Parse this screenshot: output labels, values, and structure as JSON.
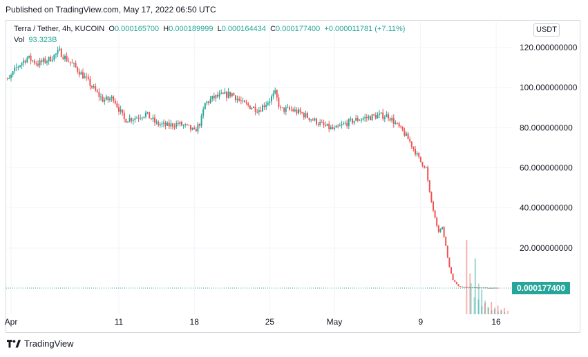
{
  "published": "Published on TradingView.com, May 17, 2022 06:50 UTC",
  "legend": {
    "symbol": "Terra / Tether, 4h, KUCOIN",
    "open_label": "O",
    "open": "0.000165700",
    "high_label": "H",
    "high": "0.000189999",
    "low_label": "L",
    "low": "0.000164434",
    "close_label": "C",
    "close": "0.000177400",
    "change": "+0.000011781 (+7.11%)"
  },
  "volume": {
    "label": "Vol",
    "value": "93.323B"
  },
  "currency_button": "USDT",
  "footer": {
    "brand": "TradingView"
  },
  "colors": {
    "up": "#26a69a",
    "down": "#ef5350",
    "price_tag": "#26a69a",
    "grid": "#f0f3fa"
  },
  "chart_data": {
    "type": "candlestick",
    "interval": "4h",
    "y_axis": {
      "position": "right",
      "ylim": [
        -5,
        123
      ],
      "tick_labels": [
        "120.000000000",
        "100.000000000",
        "80.000000000",
        "60.000000000",
        "40.000000000",
        "20.000000000"
      ],
      "tick_values": [
        120,
        100,
        80,
        60,
        40,
        20
      ]
    },
    "x_axis": {
      "tick_labels": [
        "Apr",
        "11",
        "18",
        "25",
        "May",
        "9",
        "16"
      ],
      "tick_days": [
        1,
        11,
        18,
        25,
        31,
        39,
        46
      ]
    },
    "last_price_label": "0.000177400",
    "price_path": {
      "days": [
        0.0,
        0.7,
        1.5,
        2.5,
        3.5,
        4.5,
        5.5,
        6.0,
        7.0,
        8.0,
        9.0,
        9.5,
        10.0,
        10.5,
        11.5,
        12.5,
        13.5,
        14.5,
        15.5,
        16.5,
        17.5,
        18.0,
        18.6,
        19.0,
        19.8,
        20.5,
        21.5,
        22.5,
        23.0,
        24.0,
        25.0,
        25.5,
        26.0,
        27.0,
        28.0,
        29.0,
        30.0,
        31.0,
        32.0,
        33.0,
        34.0,
        35.0,
        36.0,
        36.5,
        37.0,
        37.5,
        38.0,
        38.5,
        39.0,
        39.5,
        39.8,
        40.2,
        40.6,
        41.0,
        41.3,
        41.6,
        42.0,
        42.5,
        43.0,
        44.0,
        46.2
      ],
      "close": [
        108,
        103,
        110,
        115,
        112,
        114,
        118,
        115,
        110,
        104,
        97,
        94,
        94,
        95,
        84,
        85,
        87,
        82,
        81,
        82,
        80,
        78,
        83,
        92,
        95,
        96,
        97,
        92,
        91,
        89,
        94,
        97,
        89,
        89,
        87,
        84,
        81,
        79,
        82,
        84,
        85,
        86,
        86,
        83,
        80,
        77,
        73,
        68,
        63,
        60,
        48,
        38,
        28,
        30,
        22,
        12,
        4,
        1,
        0.5,
        0.3,
        0.0001774
      ]
    },
    "volume_bars": {
      "days": [
        43.2,
        43.6,
        44.0,
        44.3,
        44.6,
        44.9,
        45.2,
        45.5,
        45.8,
        46.1,
        46.4,
        46.7
      ],
      "values_B": [
        60,
        25,
        45,
        12,
        20,
        9,
        6,
        10,
        4,
        7,
        3,
        5
      ],
      "direction": [
        "down",
        "up",
        "up",
        "up",
        "up",
        "down",
        "up",
        "down",
        "up",
        "down",
        "up",
        "down"
      ]
    }
  }
}
